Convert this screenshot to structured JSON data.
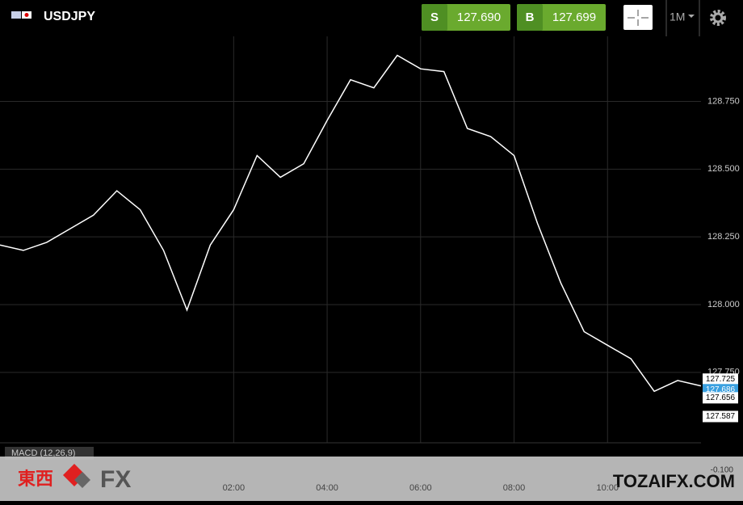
{
  "header": {
    "symbol": "USDJPY",
    "sell_label": "S",
    "sell_price": "127.690",
    "buy_label": "B",
    "buy_price": "127.699",
    "timeframe": "1M"
  },
  "chart_data": {
    "type": "line",
    "x": [
      -3,
      -2.5,
      -2,
      -1.5,
      -1,
      -0.5,
      0,
      0.5,
      1,
      1.5,
      2,
      2.5,
      3,
      3.5,
      4,
      4.5,
      5,
      5.5,
      6,
      6.5,
      7,
      7.5,
      8,
      8.5,
      9,
      9.5,
      10,
      10.5,
      11,
      11.5,
      12
    ],
    "series": [
      {
        "name": "USDJPY",
        "color": "#ffffff",
        "values": [
          128.22,
          128.2,
          128.23,
          128.28,
          128.33,
          128.42,
          128.35,
          128.2,
          127.98,
          128.22,
          128.35,
          128.55,
          128.47,
          128.52,
          128.68,
          128.83,
          128.8,
          128.92,
          128.87,
          128.86,
          128.65,
          128.62,
          128.55,
          128.3,
          128.08,
          127.9,
          127.85,
          127.8,
          127.68,
          127.72,
          127.7
        ]
      }
    ],
    "xlim": [
      -3,
      12
    ],
    "ylim": [
      127.49,
      128.99
    ],
    "xticks": [
      {
        "value": 2,
        "label": "02:00"
      },
      {
        "value": 4,
        "label": "04:00"
      },
      {
        "value": 6,
        "label": "06:00"
      },
      {
        "value": 8,
        "label": "08:00"
      },
      {
        "value": 10,
        "label": "10:00"
      }
    ],
    "yticks": [
      {
        "value": 128.75,
        "label": "128.750"
      },
      {
        "value": 128.5,
        "label": "128.500"
      },
      {
        "value": 128.25,
        "label": "128.250"
      },
      {
        "value": 128,
        "label": "128.000"
      },
      {
        "value": 127.75,
        "label": "127.750"
      }
    ],
    "price_labels": [
      127.725,
      127.686,
      127.656,
      127.587
    ],
    "grid": true
  },
  "indicator": {
    "name": "MACD (12,26,9)",
    "axis_label": "-0.100"
  },
  "watermark": {
    "logo_cn": "東西",
    "logo_fx": "FX",
    "site": "TOZAIFX.COM"
  }
}
